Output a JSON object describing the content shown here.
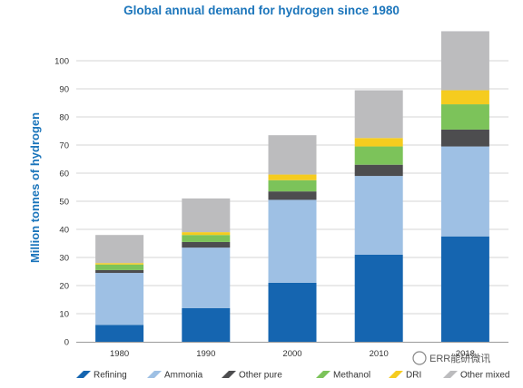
{
  "chart_data": {
    "type": "bar",
    "stacked": true,
    "title": "Global annual demand for hydrogen since 1980",
    "ylabel": "Million tonnes of hydrogen",
    "xlabel": "",
    "categories": [
      "1980",
      "1990",
      "2000",
      "2010",
      "2018"
    ],
    "ylim": [
      0,
      110
    ],
    "yticks": [
      0,
      10,
      20,
      30,
      40,
      50,
      60,
      70,
      80,
      90,
      100
    ],
    "grid": true,
    "legend_position": "bottom",
    "series": [
      {
        "name": "Refining",
        "color": "#1565b0",
        "values": [
          6,
          12,
          21,
          31,
          37.5
        ]
      },
      {
        "name": "Ammonia",
        "color": "#9ec0e4",
        "values": [
          18.5,
          21.5,
          29.5,
          28,
          32
        ]
      },
      {
        "name": "Other pure",
        "color": "#4d4d4f",
        "values": [
          1,
          2,
          3,
          4,
          6
        ]
      },
      {
        "name": "Methanol",
        "color": "#7cc35a",
        "values": [
          2,
          2.5,
          4,
          6.5,
          9
        ]
      },
      {
        "name": "DRI",
        "color": "#f5cc1f",
        "values": [
          0.5,
          1,
          2,
          3,
          5
        ]
      },
      {
        "name": "Other mixed",
        "color": "#bcbcbe",
        "values": [
          10,
          12,
          14,
          17,
          21
        ]
      }
    ]
  },
  "watermark": "ERR能研微讯"
}
